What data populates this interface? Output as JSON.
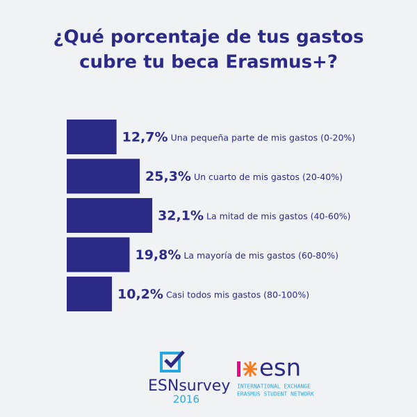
{
  "chart_data": {
    "type": "bar",
    "orientation": "horizontal",
    "title": [
      "¿Qué porcentaje de tus gastos",
      "cubre tu beca Erasmus+?"
    ],
    "categories": [
      "Una pequeña parte de mis gastos (0-20%)",
      "Un cuarto de mis gastos (20-40%)",
      "La mitad de mis gastos (40-60%)",
      "La mayoría de mis gastos (60-80%)",
      "Casi todos mis gastos (80-100%)"
    ],
    "values": [
      12.7,
      25.3,
      32.1,
      19.8,
      10.2
    ],
    "value_labels": [
      "12,7%",
      "25,3%",
      "32,1%",
      "19,8%",
      "10,2%"
    ],
    "color": "#2b2a87"
  },
  "logos": {
    "survey": "ESNsurvey",
    "year": "2016",
    "esn": "esn",
    "esn_line1": "INTERNATIONAL EXCHANGE",
    "esn_line2": "ERASMUS STUDENT NETWORK"
  }
}
